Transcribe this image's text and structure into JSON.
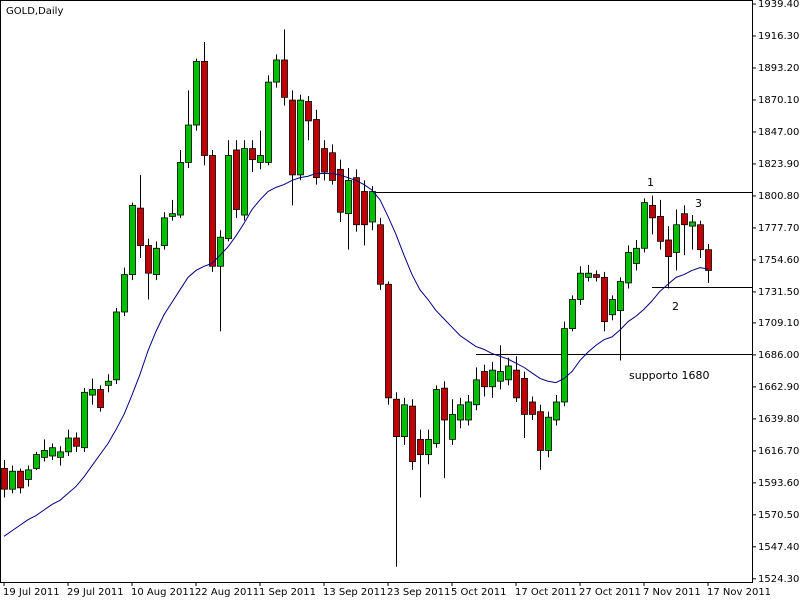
{
  "chart_data": {
    "type": "candlestick",
    "title": "GOLD,Daily",
    "categories": [
      "19 Jul 2011",
      null,
      null,
      null,
      null,
      null,
      null,
      null,
      "29 Jul 2011",
      null,
      null,
      null,
      null,
      null,
      null,
      null,
      "10 Aug 2011",
      null,
      null,
      null,
      null,
      null,
      null,
      null,
      "22 Aug 2011",
      null,
      null,
      null,
      null,
      null,
      null,
      null,
      "1 Sep 2011",
      null,
      null,
      null,
      null,
      null,
      null,
      null,
      "13 Sep 2011",
      null,
      null,
      null,
      null,
      null,
      null,
      null,
      "23 Sep 2011",
      null,
      null,
      null,
      null,
      null,
      null,
      null,
      "5 Oct 2011",
      null,
      null,
      null,
      null,
      null,
      null,
      null,
      "17 Oct 2011",
      null,
      null,
      null,
      null,
      null,
      null,
      null,
      "27 Oct 2011",
      null,
      null,
      null,
      null,
      null,
      null,
      null,
      "7 Nov 2011",
      null,
      null,
      null,
      null,
      null,
      null,
      null,
      "17 Nov 2011"
    ],
    "open": [
      1604,
      1589,
      1602,
      1596,
      1604,
      1612,
      1613,
      1612,
      1616,
      1626,
      1619,
      1657,
      1661,
      1664,
      1668,
      1717,
      1744,
      1792,
      1765,
      1744,
      1765,
      1786,
      1787,
      1825,
      1852,
      1898,
      1830,
      1750,
      1770,
      1834,
      1787,
      1835,
      1825,
      1825,
      1883,
      1899,
      1870,
      1816,
      1869,
      1856,
      1835,
      1832,
      1820,
      1788,
      1814,
      1804,
      1782,
      1780,
      1737,
      1654,
      1627,
      1649,
      1625,
      1614,
      1622,
      1662,
      1625,
      1639,
      1639,
      1650,
      1674,
      1663,
      1667,
      1668,
      1675,
      1669,
      1652,
      1645,
      1617,
      1639,
      1652,
      1705,
      1726,
      1742,
      1744,
      1742,
      1715,
      1718,
      1738,
      1752,
      1763,
      1794,
      1786,
      1769,
      1760,
      1788,
      1779,
      1780,
      1762
    ],
    "high": [
      1610,
      1606,
      1604,
      1606,
      1616,
      1625,
      1622,
      1620,
      1632,
      1630,
      1662,
      1669,
      1664,
      1672,
      1720,
      1749,
      1796,
      1816,
      1770,
      1768,
      1789,
      1798,
      1834,
      1877,
      1900,
      1912,
      1834,
      1776,
      1841,
      1841,
      1841,
      1841,
      1848,
      1888,
      1903,
      1921,
      1877,
      1874,
      1873,
      1863,
      1841,
      1838,
      1827,
      1821,
      1820,
      1812,
      1808,
      1785,
      1739,
      1659,
      1655,
      1654,
      1632,
      1632,
      1664,
      1667,
      1654,
      1655,
      1657,
      1677,
      1679,
      1681,
      1693,
      1684,
      1685,
      1674,
      1656,
      1650,
      1645,
      1657,
      1710,
      1729,
      1750,
      1751,
      1747,
      1746,
      1729,
      1742,
      1765,
      1769,
      1799,
      1801,
      1798,
      1779,
      1791,
      1794,
      1787,
      1783,
      1766
    ],
    "low": [
      1583,
      1586,
      1586,
      1591,
      1603,
      1609,
      1610,
      1606,
      1613,
      1616,
      1616,
      1650,
      1645,
      1659,
      1665,
      1714,
      1740,
      1756,
      1726,
      1740,
      1762,
      1783,
      1785,
      1821,
      1848,
      1823,
      1746,
      1703,
      1768,
      1785,
      1783,
      1818,
      1820,
      1823,
      1879,
      1866,
      1794,
      1812,
      1841,
      1809,
      1812,
      1809,
      1782,
      1762,
      1775,
      1765,
      1776,
      1733,
      1650,
      1533,
      1621,
      1603,
      1583,
      1607,
      1619,
      1597,
      1621,
      1633,
      1635,
      1646,
      1656,
      1655,
      1661,
      1664,
      1652,
      1626,
      1639,
      1603,
      1612,
      1635,
      1649,
      1703,
      1722,
      1739,
      1739,
      1703,
      1711,
      1682,
      1734,
      1747,
      1760,
      1773,
      1762,
      1734,
      1747,
      1758,
      1762,
      1756,
      1738
    ],
    "close": [
      1589,
      1602,
      1590,
      1603,
      1614,
      1617,
      1619,
      1616,
      1626,
      1620,
      1659,
      1661,
      1648,
      1667,
      1717,
      1744,
      1794,
      1765,
      1745,
      1763,
      1785,
      1788,
      1825,
      1852,
      1898,
      1830,
      1750,
      1771,
      1830,
      1791,
      1835,
      1827,
      1830,
      1883,
      1899,
      1872,
      1816,
      1870,
      1855,
      1814,
      1818,
      1812,
      1789,
      1812,
      1780,
      1780,
      1804,
      1737,
      1655,
      1627,
      1650,
      1609,
      1614,
      1625,
      1661,
      1639,
      1643,
      1650,
      1652,
      1668,
      1663,
      1675,
      1674,
      1678,
      1655,
      1643,
      1643,
      1617,
      1641,
      1652,
      1705,
      1726,
      1745,
      1745,
      1742,
      1710,
      1726,
      1739,
      1760,
      1763,
      1796,
      1785,
      1768,
      1757,
      1780,
      1780,
      1782,
      1762,
      1747
    ],
    "ma": [
      1555,
      1559,
      1563,
      1567,
      1570,
      1574,
      1578,
      1581,
      1586,
      1591,
      1598,
      1606,
      1614,
      1622,
      1632,
      1643,
      1657,
      1672,
      1689,
      1703,
      1715,
      1724,
      1733,
      1742,
      1747,
      1750,
      1752,
      1758,
      1764,
      1772,
      1781,
      1791,
      1798,
      1804,
      1807,
      1809,
      1812,
      1814,
      1815,
      1817,
      1817,
      1817,
      1816,
      1814,
      1812,
      1809,
      1805,
      1798,
      1786,
      1773,
      1758,
      1744,
      1733,
      1726,
      1718,
      1712,
      1706,
      1700,
      1696,
      1692,
      1690,
      1687,
      1685,
      1683,
      1680,
      1677,
      1673,
      1669,
      1667,
      1666,
      1669,
      1674,
      1682,
      1688,
      1693,
      1697,
      1699,
      1704,
      1710,
      1714,
      1719,
      1725,
      1732,
      1737,
      1742,
      1744,
      1747,
      1749,
      1748
    ],
    "levels": [
      {
        "value": 1804,
        "start": 46
      },
      {
        "value": 1735,
        "start": 81
      },
      {
        "value": 1687,
        "start": 59
      }
    ],
    "annotations": [
      "1",
      "3",
      "2",
      "supporto 1680"
    ],
    "up_color": "#00c000",
    "down_color": "#c00000",
    "ma_color": "#000080",
    "level_color": "#000000",
    "ylim": [
      1522.0,
      1942.3
    ],
    "yticks": [
      {
        "value": 1939.4,
        "label": "1939.40"
      },
      {
        "value": 1916.3,
        "label": "1916.30"
      },
      {
        "value": 1893.2,
        "label": "1893.20"
      },
      {
        "value": 1870.1,
        "label": "1870.10"
      },
      {
        "value": 1847.0,
        "label": "1847.00"
      },
      {
        "value": 1823.9,
        "label": "1823.90"
      },
      {
        "value": 1800.8,
        "label": "1800.80"
      },
      {
        "value": 1777.7,
        "label": "1777.70"
      },
      {
        "value": 1754.6,
        "label": "1754.60"
      },
      {
        "value": 1731.5,
        "label": "1731.50"
      },
      {
        "value": 1709.1,
        "label": "1709.10"
      },
      {
        "value": 1686.0,
        "label": "1686.00"
      },
      {
        "value": 1662.9,
        "label": "1662.90"
      },
      {
        "value": 1639.8,
        "label": "1639.80"
      },
      {
        "value": 1616.7,
        "label": "1616.70"
      },
      {
        "value": 1593.6,
        "label": "1593.60"
      },
      {
        "value": 1570.5,
        "label": "1570.50"
      },
      {
        "value": 1547.4,
        "label": "1547.40"
      },
      {
        "value": 1524.3,
        "label": "1524.30"
      }
    ]
  }
}
